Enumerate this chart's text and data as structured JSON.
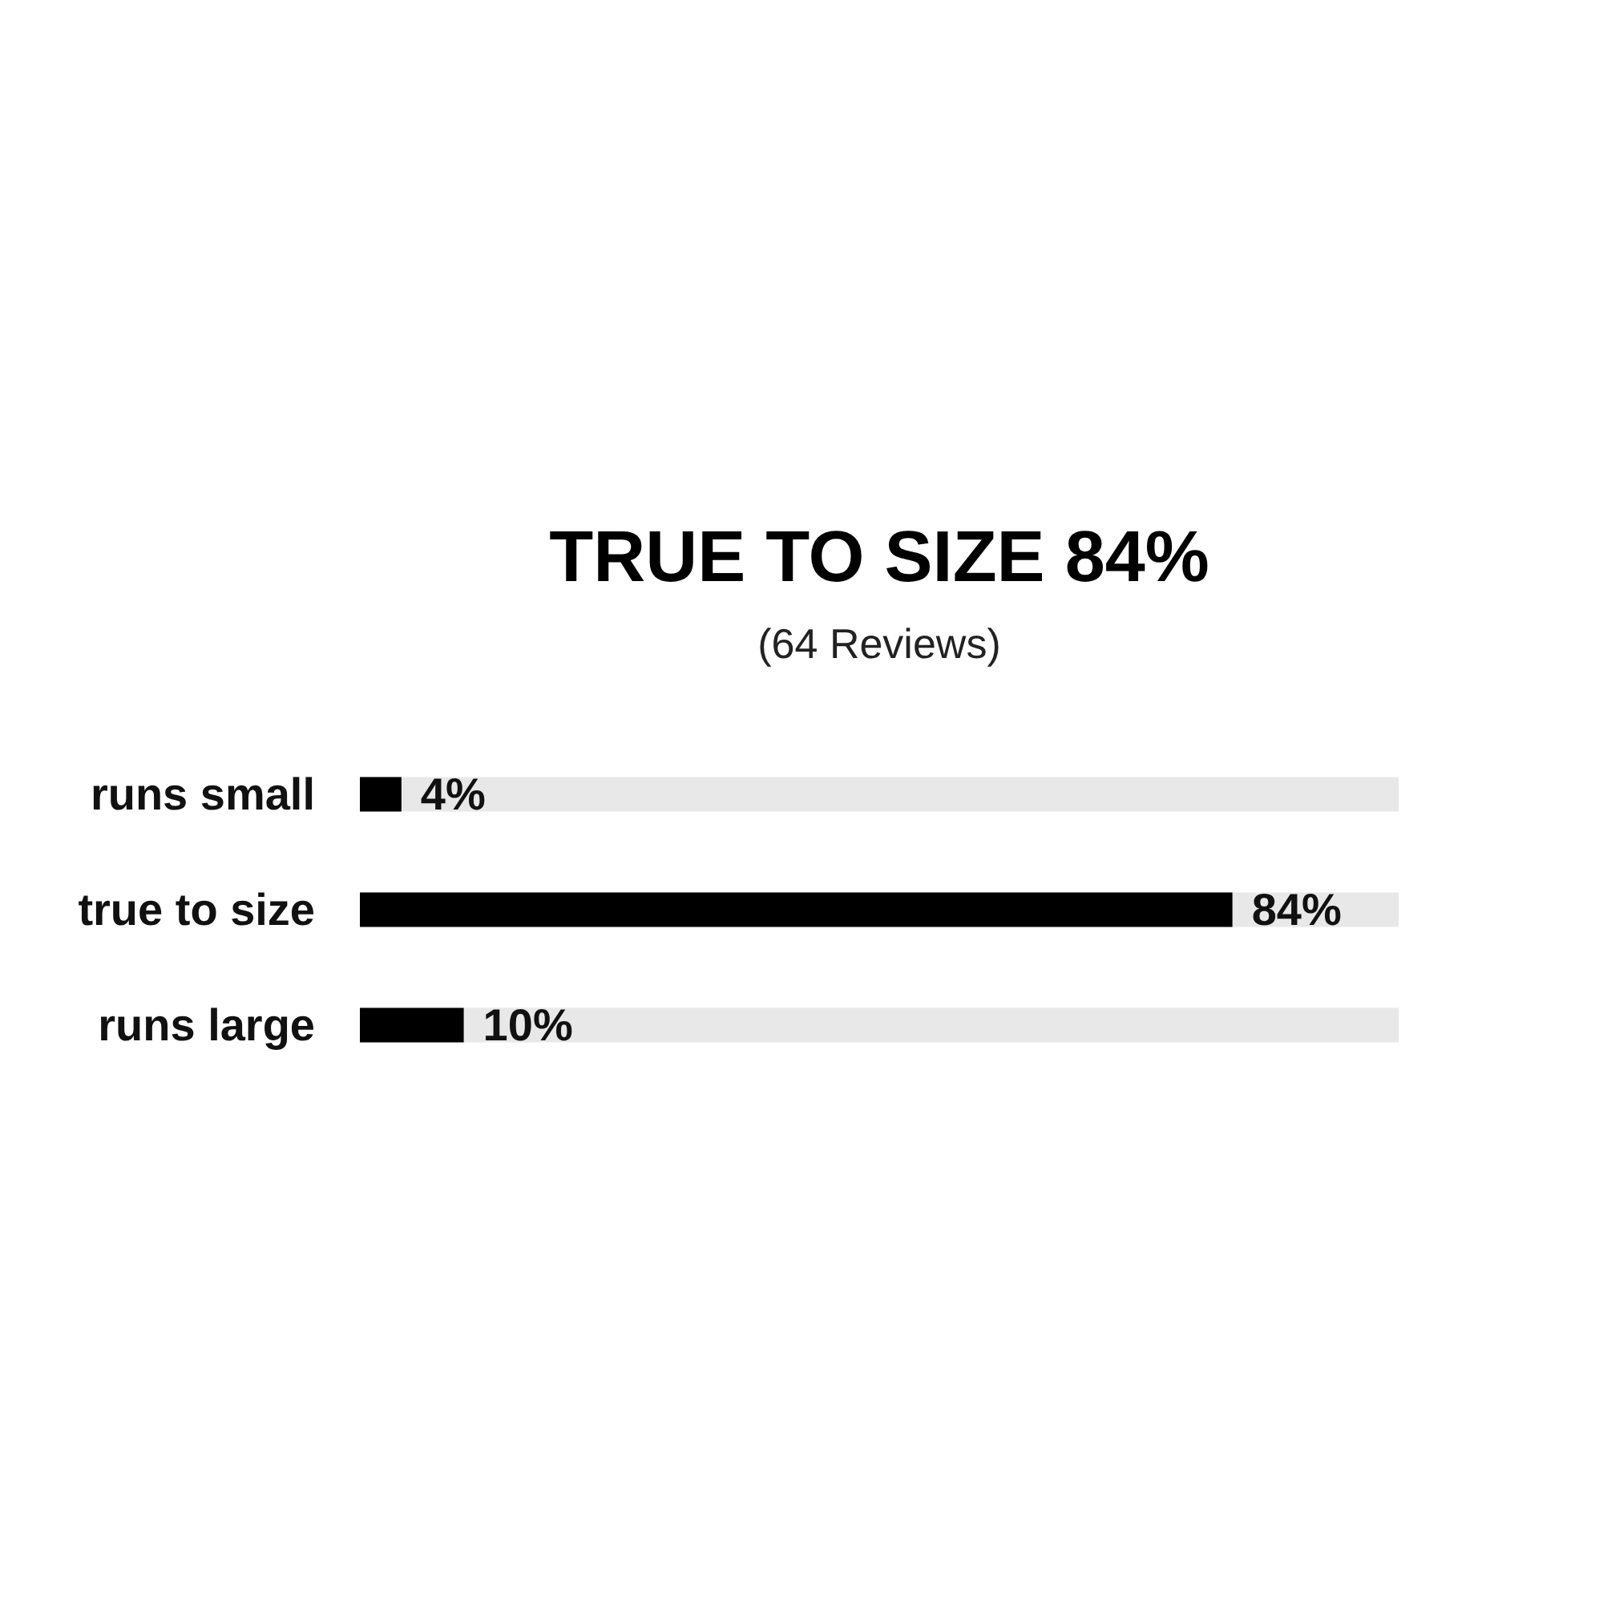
{
  "chart_data": {
    "type": "bar",
    "orientation": "horizontal",
    "title": "TRUE TO SIZE 84%",
    "subtitle": "(64 Reviews)",
    "categories": [
      "runs small",
      "true to size",
      "runs large"
    ],
    "values": [
      4,
      84,
      10
    ],
    "value_labels": [
      "4%",
      "84%",
      "10%"
    ],
    "color": "#000000",
    "xlim": [
      0,
      100
    ],
    "tick_labels": "y",
    "grid": false
  }
}
